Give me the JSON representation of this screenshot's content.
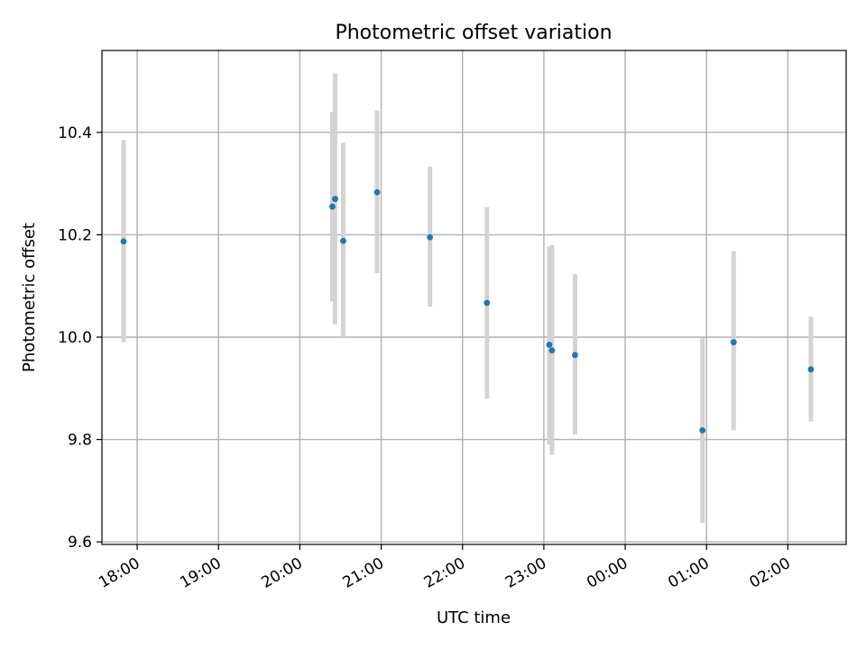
{
  "chart_data": {
    "type": "scatter",
    "title": "Photometric offset variation",
    "xlabel": "UTC time",
    "ylabel": "Photometric offset",
    "x_axis": {
      "type": "time",
      "range": [
        "17:34",
        "02:43"
      ],
      "ticks": [
        "18:00",
        "19:00",
        "20:00",
        "21:00",
        "22:00",
        "23:00",
        "00:00",
        "01:00",
        "02:00"
      ]
    },
    "y_axis": {
      "range": [
        9.595,
        10.56
      ],
      "ticks": [
        "9.6",
        "9.8",
        "10.0",
        "10.2",
        "10.4"
      ]
    },
    "grid": true,
    "colors": {
      "point": "#1f77b4",
      "errorbar": "#d3d3d3",
      "grid": "#b0b0b0"
    },
    "series": [
      {
        "points": [
          {
            "x": "17:50",
            "y": 10.187,
            "ymin": 9.99,
            "ymax": 10.385
          },
          {
            "x": "20:24",
            "y": 10.255,
            "ymin": 10.07,
            "ymax": 10.44
          },
          {
            "x": "20:26",
            "y": 10.27,
            "ymin": 10.025,
            "ymax": 10.515
          },
          {
            "x": "20:32",
            "y": 10.188,
            "ymin": 10.0,
            "ymax": 10.38
          },
          {
            "x": "20:57",
            "y": 10.283,
            "ymin": 10.125,
            "ymax": 10.443
          },
          {
            "x": "21:36",
            "y": 10.195,
            "ymin": 10.06,
            "ymax": 10.333
          },
          {
            "x": "22:18",
            "y": 10.067,
            "ymin": 9.88,
            "ymax": 10.254
          },
          {
            "x": "23:04",
            "y": 9.985,
            "ymin": 9.79,
            "ymax": 10.177
          },
          {
            "x": "23:06",
            "y": 9.974,
            "ymin": 9.77,
            "ymax": 10.18
          },
          {
            "x": "23:23",
            "y": 9.965,
            "ymin": 9.81,
            "ymax": 10.123
          },
          {
            "x": "00:57",
            "y": 9.818,
            "ymin": 9.637,
            "ymax": 9.998
          },
          {
            "x": "01:20",
            "y": 9.99,
            "ymin": 9.818,
            "ymax": 10.168
          },
          {
            "x": "02:17",
            "y": 9.937,
            "ymin": 9.835,
            "ymax": 10.04
          }
        ]
      }
    ]
  }
}
